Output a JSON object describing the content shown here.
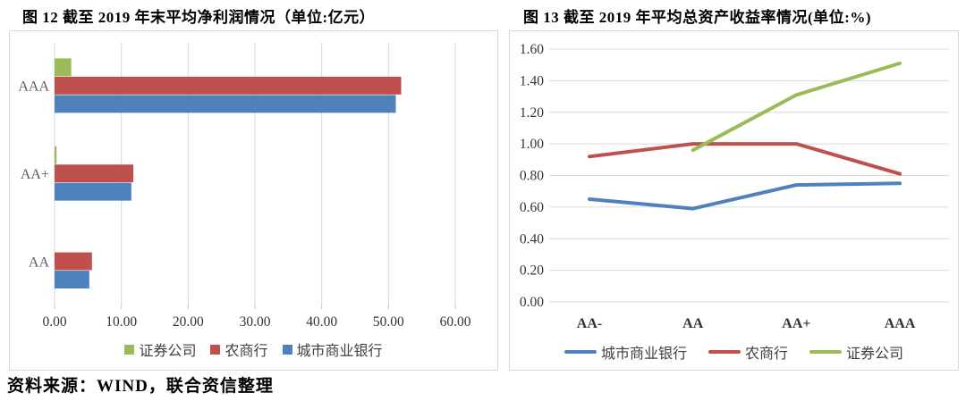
{
  "figure12": {
    "title": "图 12  截至 2019 年末平均净利润情况（单位:亿元）"
  },
  "figure13": {
    "title": "图 13  截至 2019 年平均总资产收益率情况(单位:%)"
  },
  "source_note": "资料来源：WIND，联合资信整理",
  "colors": {
    "securities_green": "#9BBB59",
    "rural_bank_red": "#C0504D",
    "city_bank_blue": "#4F81BD",
    "gridline": "#d9d9d9",
    "tick_mark": "#bfbfbf",
    "tick_text": "#333333",
    "category_text": "#595959"
  },
  "chart_data": [
    {
      "type": "bar",
      "orientation": "horizontal",
      "title": "截至 2019 年末平均净利润情况",
      "unit": "亿元",
      "categories": [
        "AAA",
        "AA+",
        "AA"
      ],
      "series": [
        {
          "name": "证券公司",
          "color": "#9BBB59",
          "values": [
            2.5,
            0.3,
            0
          ]
        },
        {
          "name": "农商行",
          "color": "#C0504D",
          "values": [
            51.9,
            11.8,
            5.6
          ]
        },
        {
          "name": "城市商业银行",
          "color": "#4F81BD",
          "values": [
            51.1,
            11.5,
            5.2
          ]
        }
      ],
      "xlim": [
        0,
        60
      ],
      "x_ticks": [
        "0.00",
        "10.00",
        "20.00",
        "30.00",
        "40.00",
        "50.00",
        "60.00"
      ],
      "grid": true,
      "legend_position": "bottom"
    },
    {
      "type": "line",
      "title": "截至 2019 年平均总资产收益率情况",
      "unit": "%",
      "categories": [
        "AA-",
        "AA",
        "AA+",
        "AAA"
      ],
      "series": [
        {
          "name": "城市商业银行",
          "color": "#4F81BD",
          "values": [
            0.65,
            0.59,
            0.74,
            0.75
          ]
        },
        {
          "name": "农商行",
          "color": "#C0504D",
          "values": [
            0.92,
            1.0,
            1.0,
            0.81
          ]
        },
        {
          "name": "证券公司",
          "color": "#9BBB59",
          "values": [
            null,
            0.96,
            1.31,
            1.51
          ]
        }
      ],
      "ylim": [
        0,
        1.6
      ],
      "y_ticks": [
        "0.00",
        "0.20",
        "0.40",
        "0.60",
        "0.80",
        "1.00",
        "1.20",
        "1.40",
        "1.60"
      ],
      "grid": true,
      "legend_position": "bottom"
    }
  ]
}
